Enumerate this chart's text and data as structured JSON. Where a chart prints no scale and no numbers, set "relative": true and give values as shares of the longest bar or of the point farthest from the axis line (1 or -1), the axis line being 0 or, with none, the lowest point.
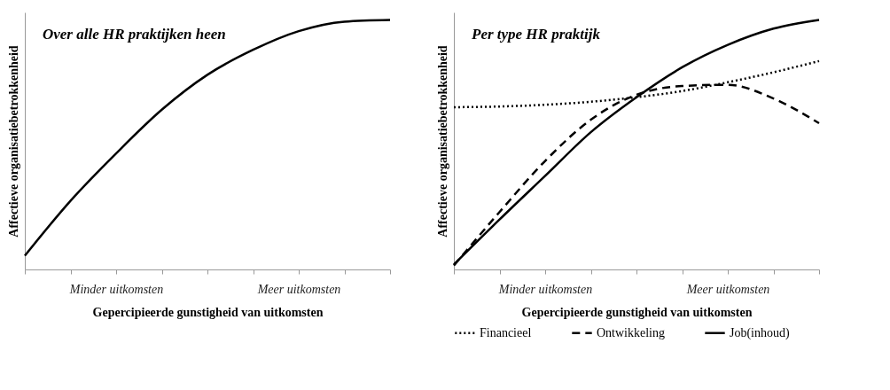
{
  "chart_data": [
    {
      "type": "line",
      "title": "Over alle HR praktijken heen",
      "xlabel": "Gepercipieerde gunstigheid van uitkomsten",
      "ylabel": "Affectieve organisatiebetrokkenheid",
      "relative": true,
      "categories": [
        null,
        null,
        "Minder uitkomsten",
        null,
        null,
        null,
        "Meer uitkomsten",
        null,
        null
      ],
      "series": [
        {
          "color": "#000000",
          "line_style": "solid",
          "values": [
            0.055,
            0.275,
            0.465,
            0.64,
            0.78,
            0.88,
            0.955,
            0.993,
            1.0
          ]
        }
      ]
    },
    {
      "type": "line",
      "title": "Per type HR praktijk",
      "xlabel": "Gepercipieerde gunstigheid van uitkomsten",
      "ylabel": "Affectieve organisatiebetrokkenheid",
      "relative": true,
      "categories": [
        null,
        null,
        "Minder uitkomsten",
        null,
        null,
        null,
        "Meer uitkomsten",
        null,
        null
      ],
      "series": [
        {
          "name": "Financieel",
          "color": "#000000",
          "line_style": "dotted",
          "values": [
            0.65,
            0.653,
            0.66,
            0.672,
            0.69,
            0.715,
            0.75,
            0.79,
            0.835
          ]
        },
        {
          "name": "Ontwikkeling",
          "color": "#000000",
          "line_style": "dashed",
          "values": [
            0.016,
            0.23,
            0.435,
            0.6,
            0.7,
            0.735,
            0.74,
            0.685,
            0.586
          ]
        },
        {
          "name": "Job(inhoud)",
          "color": "#000000",
          "line_style": "solid",
          "values": [
            0.02,
            0.2,
            0.375,
            0.55,
            0.69,
            0.81,
            0.9,
            0.965,
            1.0
          ]
        }
      ],
      "legend": "bottom"
    }
  ]
}
